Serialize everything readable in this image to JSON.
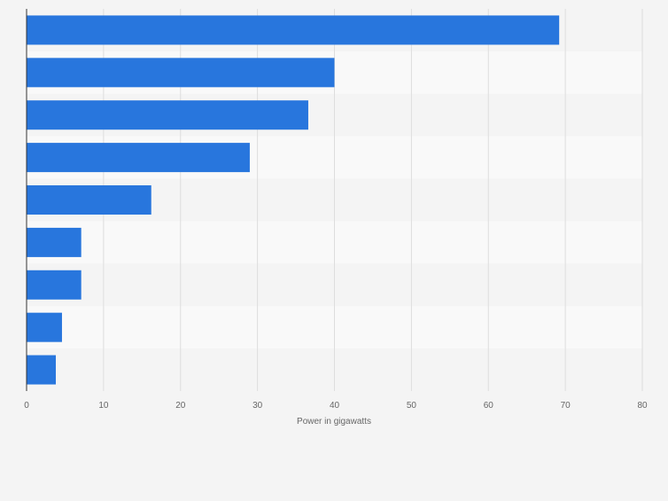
{
  "chart_data": {
    "type": "bar",
    "orientation": "horizontal",
    "title": "",
    "xlabel": "Power in gigawatts",
    "ylabel": "",
    "xlim": [
      0,
      80
    ],
    "xticks": [
      0,
      10,
      20,
      30,
      40,
      50,
      60,
      70,
      80
    ],
    "grid": true,
    "categories": [
      "",
      "",
      "",
      "",
      "",
      "",
      "",
      "",
      ""
    ],
    "values": [
      69.2,
      40.0,
      36.6,
      29.0,
      16.2,
      7.1,
      7.1,
      4.6,
      3.8
    ],
    "colors": {
      "bar": "#2876dd",
      "band_dark": "#f4f4f4",
      "band_light": "#f9f9f9",
      "grid": "#dddddd",
      "axis": "#333333"
    }
  }
}
